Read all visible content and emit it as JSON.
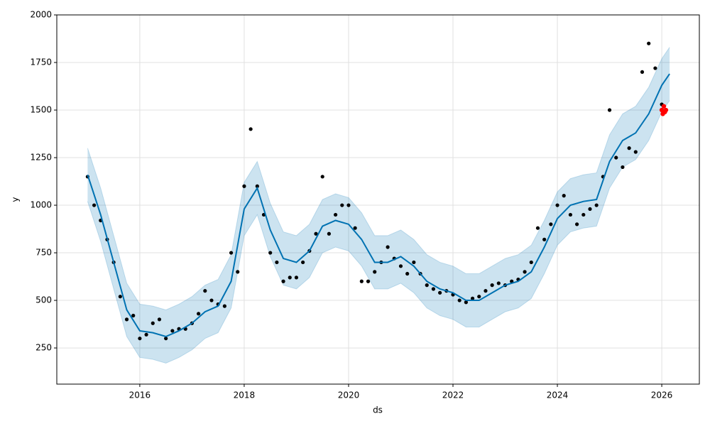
{
  "chart_data": {
    "type": "forecast",
    "xlabel": "ds",
    "ylabel": "y",
    "xlim": [
      2014.41,
      2026.72
    ],
    "xticks": [
      2016,
      2018,
      2020,
      2022,
      2024,
      2026
    ],
    "ylim": [
      60,
      2000
    ],
    "yticks": [
      250,
      500,
      750,
      1000,
      1250,
      1500,
      1750,
      2000
    ],
    "grid": true,
    "observed": {
      "color": "#000000",
      "x": [
        2015.0,
        2015.125,
        2015.25,
        2015.375,
        2015.5,
        2015.625,
        2015.75,
        2015.875,
        2016.0,
        2016.125,
        2016.25,
        2016.375,
        2016.5,
        2016.625,
        2016.75,
        2016.875,
        2017.0,
        2017.125,
        2017.25,
        2017.375,
        2017.5,
        2017.625,
        2017.75,
        2017.875,
        2018.0,
        2018.125,
        2018.25,
        2018.375,
        2018.5,
        2018.625,
        2018.75,
        2018.875,
        2019.0,
        2019.125,
        2019.25,
        2019.375,
        2019.5,
        2019.625,
        2019.75,
        2019.875,
        2020.0,
        2020.125,
        2020.25,
        2020.375,
        2020.5,
        2020.625,
        2020.75,
        2020.875,
        2021.0,
        2021.125,
        2021.25,
        2021.375,
        2021.5,
        2021.625,
        2021.75,
        2021.875,
        2022.0,
        2022.125,
        2022.25,
        2022.375,
        2022.5,
        2022.625,
        2022.75,
        2022.875,
        2023.0,
        2023.125,
        2023.25,
        2023.375,
        2023.5,
        2023.625,
        2023.75,
        2023.875,
        2024.0,
        2024.125,
        2024.25,
        2024.375,
        2024.5,
        2024.625,
        2024.75,
        2024.875,
        2025.0,
        2025.125,
        2025.25,
        2025.375,
        2025.5,
        2025.625,
        2025.75,
        2025.875,
        2026.0
      ],
      "y": [
        1150,
        1000,
        920,
        820,
        700,
        520,
        400,
        420,
        300,
        320,
        380,
        400,
        300,
        340,
        350,
        350,
        380,
        430,
        550,
        500,
        480,
        470,
        750,
        650,
        1100,
        1400,
        1100,
        950,
        750,
        700,
        600,
        620,
        620,
        700,
        760,
        850,
        1150,
        850,
        950,
        1000,
        1000,
        880,
        600,
        600,
        650,
        700,
        780,
        720,
        680,
        640,
        700,
        640,
        580,
        560,
        540,
        550,
        530,
        500,
        490,
        510,
        520,
        550,
        580,
        590,
        580,
        600,
        610,
        650,
        700,
        880,
        820,
        900,
        1000,
        1050,
        950,
        900,
        950,
        980,
        1000,
        1150,
        1500,
        1250,
        1200,
        1300,
        1280,
        1700,
        1850,
        1720,
        1530
      ]
    },
    "recent": {
      "color": "#ff0000",
      "x": [
        2026.0,
        2026.02,
        2026.04,
        2026.06,
        2026.08
      ],
      "y": [
        1500,
        1480,
        1520,
        1490,
        1500
      ]
    },
    "forecast": {
      "color": "#0072b2",
      "x": [
        2015.0,
        2015.25,
        2015.5,
        2015.75,
        2016.0,
        2016.25,
        2016.5,
        2016.75,
        2017.0,
        2017.25,
        2017.5,
        2017.75,
        2018.0,
        2018.25,
        2018.5,
        2018.75,
        2019.0,
        2019.25,
        2019.5,
        2019.75,
        2020.0,
        2020.25,
        2020.5,
        2020.75,
        2021.0,
        2021.25,
        2021.5,
        2021.75,
        2022.0,
        2022.25,
        2022.5,
        2022.75,
        2023.0,
        2023.25,
        2023.5,
        2023.75,
        2024.0,
        2024.25,
        2024.5,
        2024.75,
        2025.0,
        2025.25,
        2025.5,
        2025.75,
        2026.0,
        2026.15
      ],
      "y": [
        1160,
        950,
        700,
        450,
        340,
        330,
        310,
        340,
        380,
        440,
        470,
        600,
        980,
        1090,
        870,
        720,
        700,
        760,
        890,
        920,
        900,
        820,
        700,
        700,
        730,
        680,
        600,
        560,
        540,
        500,
        500,
        540,
        580,
        600,
        650,
        780,
        930,
        1000,
        1020,
        1030,
        1230,
        1340,
        1380,
        1480,
        1630,
        1690
      ],
      "upper": [
        1300,
        1090,
        840,
        590,
        480,
        470,
        450,
        480,
        520,
        580,
        610,
        740,
        1120,
        1230,
        1010,
        860,
        840,
        900,
        1030,
        1060,
        1040,
        960,
        840,
        840,
        870,
        820,
        740,
        700,
        680,
        640,
        640,
        680,
        720,
        740,
        790,
        920,
        1070,
        1140,
        1160,
        1170,
        1370,
        1480,
        1520,
        1620,
        1770,
        1830
      ],
      "lower": [
        1020,
        810,
        560,
        310,
        200,
        190,
        170,
        200,
        240,
        300,
        330,
        460,
        840,
        950,
        730,
        580,
        560,
        620,
        750,
        780,
        760,
        680,
        560,
        560,
        590,
        540,
        460,
        420,
        400,
        360,
        360,
        400,
        440,
        460,
        510,
        640,
        790,
        860,
        880,
        890,
        1090,
        1200,
        1240,
        1340,
        1490,
        1550
      ],
      "band_color": "#0072b2"
    }
  }
}
